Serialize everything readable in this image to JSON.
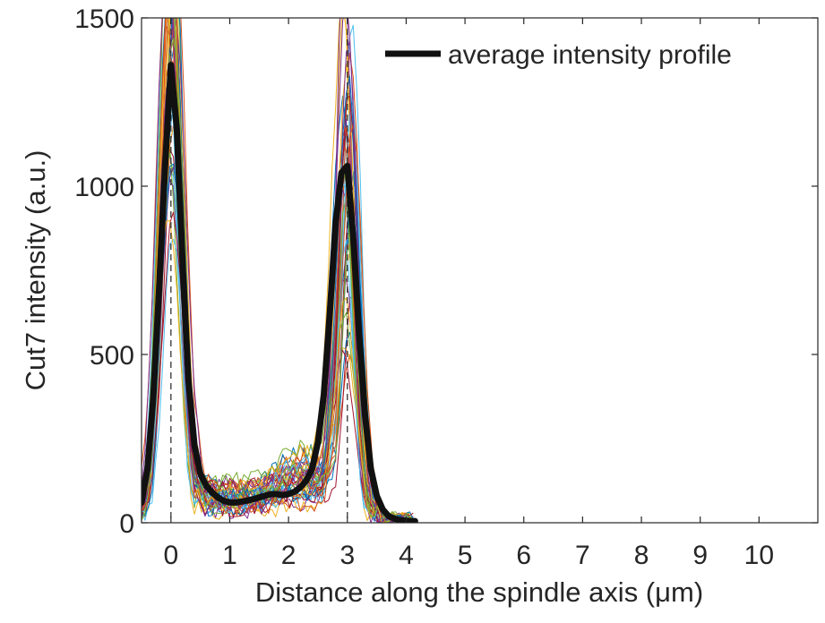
{
  "chart_data": {
    "type": "line",
    "xlabel": "Distance along the spindle axis (μm)",
    "ylabel": "Cut7 intensity (a.u.)",
    "xlim": [
      -0.5,
      11
    ],
    "ylim": [
      0,
      1500
    ],
    "xticks": [
      "0",
      "1",
      "2",
      "3",
      "4",
      "5",
      "6",
      "7",
      "8",
      "9",
      "10"
    ],
    "xtick_values": [
      0,
      1,
      2,
      3,
      4,
      5,
      6,
      7,
      8,
      9,
      10
    ],
    "yticks": [
      "0",
      "500",
      "1000",
      "1500"
    ],
    "ytick_values": [
      0,
      500,
      1000,
      1500
    ],
    "grid": false,
    "legend": {
      "entries": [
        "average intensity profile"
      ],
      "location": "top-right"
    },
    "reference_lines": {
      "x": [
        0,
        3
      ],
      "style": "dashed",
      "color": "#333333"
    },
    "individual_profiles": {
      "count": 40,
      "x_range": [
        -0.5,
        4.15
      ],
      "description_colors": [
        "#0072BD",
        "#D95319",
        "#EDB120",
        "#7E2F8E",
        "#77AC30",
        "#4DBEEE",
        "#A2142F"
      ]
    },
    "series": [
      {
        "name": "average intensity profile",
        "color": "#111111",
        "x": [
          -0.5,
          -0.4,
          -0.3,
          -0.2,
          -0.1,
          0,
          0.1,
          0.2,
          0.3,
          0.4,
          0.5,
          0.6,
          0.7,
          0.8,
          0.9,
          1.0,
          1.1,
          1.2,
          1.3,
          1.4,
          1.5,
          1.6,
          1.7,
          1.8,
          1.9,
          2.0,
          2.1,
          2.2,
          2.3,
          2.4,
          2.5,
          2.6,
          2.7,
          2.8,
          2.9,
          3.0,
          3.1,
          3.2,
          3.3,
          3.4,
          3.5,
          3.6,
          3.7,
          3.8,
          3.9,
          4.0,
          4.1,
          4.15
        ],
        "values": [
          60,
          160,
          370,
          700,
          1060,
          1360,
          1170,
          760,
          420,
          230,
          145,
          110,
          90,
          75,
          65,
          60,
          60,
          63,
          66,
          70,
          75,
          80,
          85,
          85,
          82,
          85,
          92,
          105,
          125,
          160,
          240,
          380,
          620,
          890,
          1040,
          1060,
          850,
          560,
          320,
          160,
          80,
          40,
          20,
          12,
          8,
          6,
          5,
          5
        ]
      }
    ]
  }
}
